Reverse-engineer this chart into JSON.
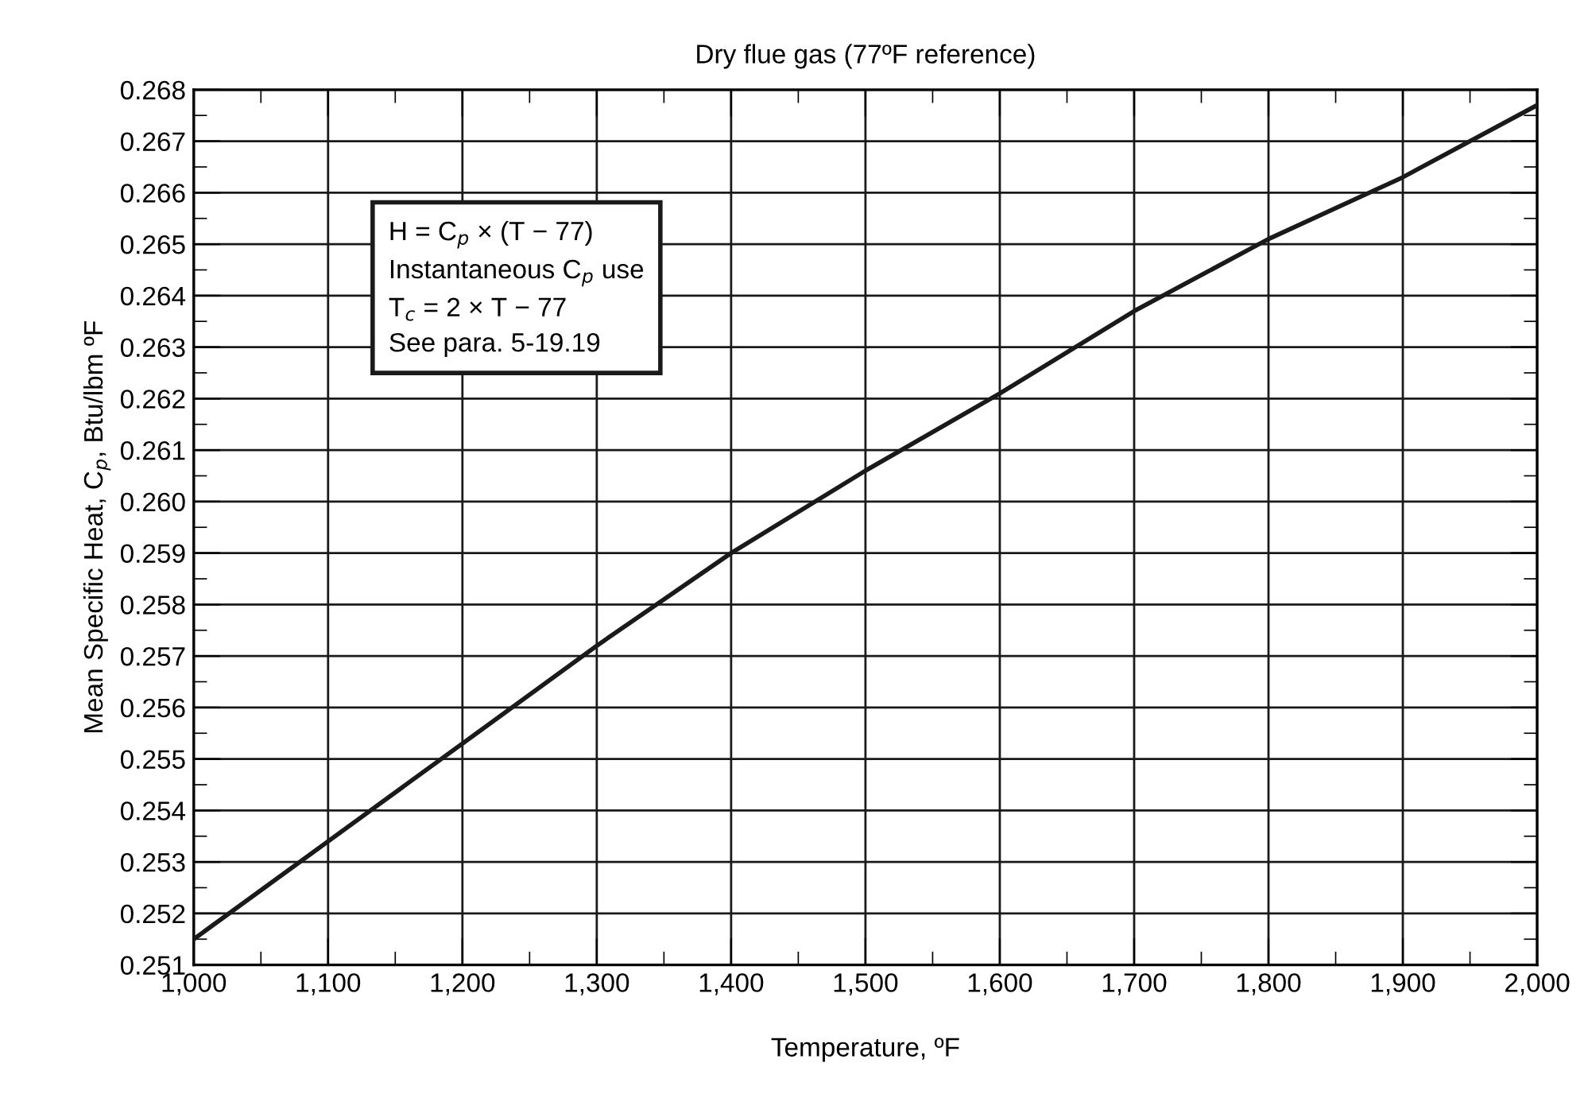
{
  "chart_data": {
    "type": "line",
    "title": "Dry flue gas (77ºF reference)",
    "xlabel": "Temperature, ºF",
    "ylabel": "Mean Specific Heat, C$_{p}$, Btu/lbm ºF",
    "x": [
      1000,
      1100,
      1200,
      1300,
      1400,
      1500,
      1600,
      1700,
      1800,
      1900,
      2000
    ],
    "series": [
      {
        "color": "#1a1a1a",
        "values": [
          0.2515,
          0.2534,
          0.2553,
          0.2572,
          0.259,
          0.2606,
          0.2621,
          0.2637,
          0.2651,
          0.2663,
          0.2677
        ]
      }
    ],
    "xlim": [
      1000,
      2000
    ],
    "ylim": [
      0.251,
      0.268
    ],
    "xticks": [
      {
        "value": 1000,
        "label": "1,000"
      },
      {
        "value": 1100,
        "label": "1,100"
      },
      {
        "value": 1200,
        "label": "1,200"
      },
      {
        "value": 1300,
        "label": "1,300"
      },
      {
        "value": 1400,
        "label": "1,400"
      },
      {
        "value": 1500,
        "label": "1,500"
      },
      {
        "value": 1600,
        "label": "1,600"
      },
      {
        "value": 1700,
        "label": "1,700"
      },
      {
        "value": 1800,
        "label": "1,800"
      },
      {
        "value": 1900,
        "label": "1,900"
      },
      {
        "value": 2000,
        "label": "2,000"
      }
    ],
    "yticks": [
      0.251,
      0.252,
      0.253,
      0.254,
      0.255,
      0.256,
      0.257,
      0.258,
      0.259,
      {
        "value": 0.26,
        "label": "0.260"
      },
      0.261,
      0.262,
      0.263,
      0.264,
      0.265,
      0.266,
      0.267,
      0.268
    ],
    "grid": true,
    "marker": "none",
    "line_style": "solid",
    "annotations": [
      "H = C$_{p}$ × (T − 77)\nInstantaneous C$_{p}$ use\nT$_{c}$ = 2 × T − 77\nSee para. 5-19.19"
    ]
  }
}
